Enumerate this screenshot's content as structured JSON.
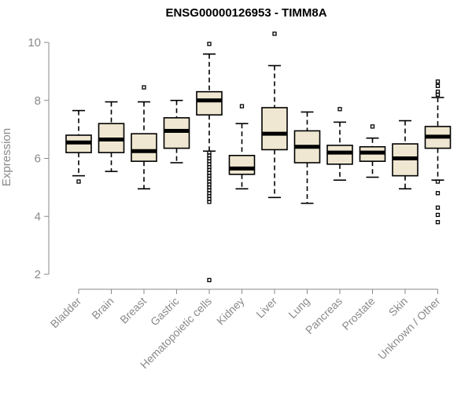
{
  "chart_data": {
    "type": "box",
    "title": "ENSG00000126953 - TIMM8A",
    "xlabel": "",
    "ylabel": "Expression",
    "ylim": [
      1.7,
      10.3
    ],
    "yticks": [
      2,
      4,
      6,
      8,
      10
    ],
    "grid": false,
    "categories": [
      "Bladder",
      "Brain",
      "Breast",
      "Gastric",
      "Hematopoietic cells",
      "Kidney",
      "Liver",
      "Lung",
      "Pancreas",
      "Prostate",
      "Skin",
      "Unknown / Other"
    ],
    "boxes": [
      {
        "category": "Bladder",
        "min": 5.4,
        "q1": 6.2,
        "median": 6.55,
        "q3": 6.8,
        "max": 7.65,
        "outliers": [
          5.2
        ]
      },
      {
        "category": "Brain",
        "min": 5.55,
        "q1": 6.2,
        "median": 6.65,
        "q3": 7.2,
        "max": 7.95,
        "outliers": []
      },
      {
        "category": "Breast",
        "min": 4.95,
        "q1": 5.9,
        "median": 6.25,
        "q3": 6.85,
        "max": 7.95,
        "outliers": [
          8.45
        ]
      },
      {
        "category": "Gastric",
        "min": 5.85,
        "q1": 6.35,
        "median": 6.95,
        "q3": 7.4,
        "max": 8.0,
        "outliers": []
      },
      {
        "category": "Hematopoietic cells",
        "min": 6.25,
        "q1": 7.5,
        "median": 8.0,
        "q3": 8.3,
        "max": 9.6,
        "outliers": [
          9.95,
          6.2,
          6.1,
          6.0,
          5.9,
          5.8,
          5.7,
          5.6,
          5.5,
          5.4,
          5.3,
          5.2,
          5.1,
          5.0,
          4.9,
          4.8,
          4.7,
          4.6,
          4.5,
          1.8
        ]
      },
      {
        "category": "Kidney",
        "min": 4.95,
        "q1": 5.45,
        "median": 5.65,
        "q3": 6.1,
        "max": 7.2,
        "outliers": [
          7.8
        ]
      },
      {
        "category": "Liver",
        "min": 4.65,
        "q1": 6.3,
        "median": 6.85,
        "q3": 7.75,
        "max": 9.2,
        "outliers": [
          10.3
        ]
      },
      {
        "category": "Lung",
        "min": 4.45,
        "q1": 5.85,
        "median": 6.4,
        "q3": 6.95,
        "max": 7.6,
        "outliers": []
      },
      {
        "category": "Pancreas",
        "min": 5.25,
        "q1": 5.8,
        "median": 6.2,
        "q3": 6.45,
        "max": 7.25,
        "outliers": [
          7.7
        ]
      },
      {
        "category": "Prostate",
        "min": 5.35,
        "q1": 5.9,
        "median": 6.2,
        "q3": 6.4,
        "max": 6.7,
        "outliers": [
          7.1
        ]
      },
      {
        "category": "Skin",
        "min": 4.95,
        "q1": 5.4,
        "median": 6.0,
        "q3": 6.5,
        "max": 7.3,
        "outliers": []
      },
      {
        "category": "Unknown / Other",
        "min": 5.25,
        "q1": 6.35,
        "median": 6.75,
        "q3": 7.1,
        "max": 8.1,
        "outliers": [
          8.65,
          8.5,
          8.3,
          8.2,
          5.2,
          4.8,
          4.3,
          4.05,
          3.8
        ]
      }
    ],
    "colors": {
      "box_fill": "#efe7d1",
      "box_stroke": "#000000",
      "axis": "#8a8a8a",
      "text": "#8a8a8a"
    }
  }
}
